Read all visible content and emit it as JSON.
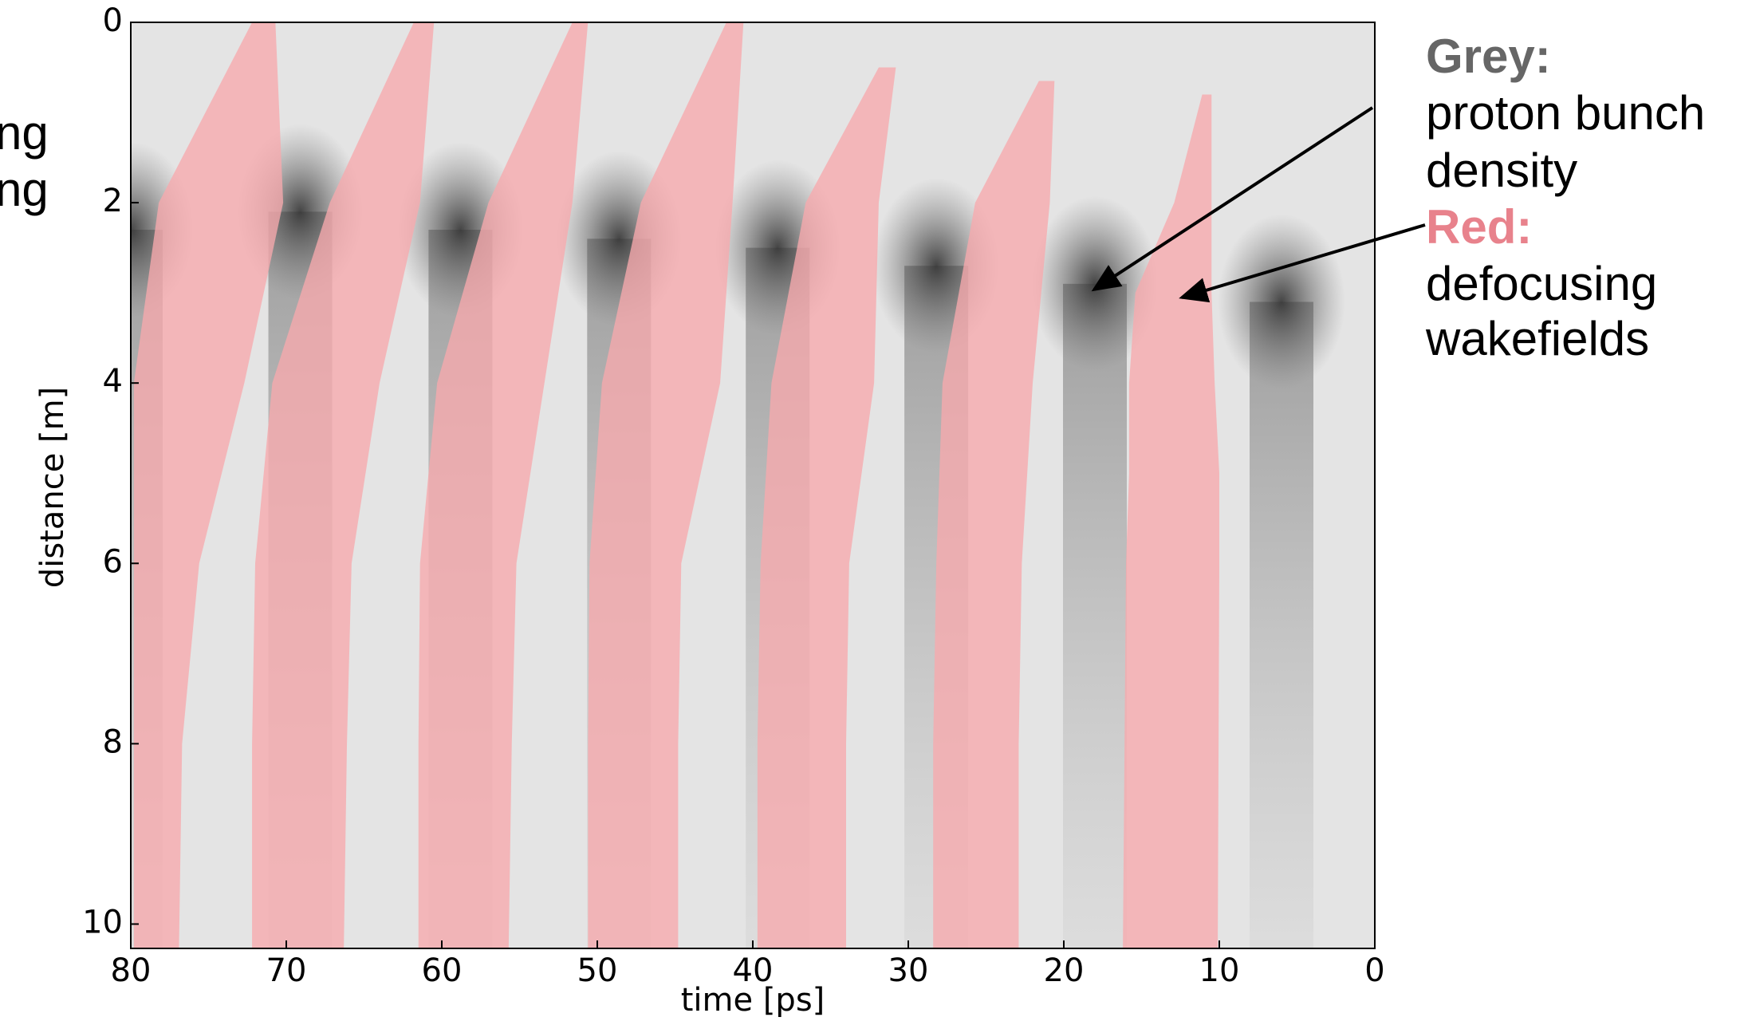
{
  "chart_data": {
    "type": "bands",
    "xlabel": "time [ps]",
    "ylabel": "distance [m]",
    "xlim": [
      80,
      0
    ],
    "xticks": [
      80,
      70,
      60,
      50,
      40,
      30,
      20,
      10,
      0
    ],
    "ylim": [
      0,
      10.27
    ],
    "yticks": [
      0,
      2,
      4,
      6,
      8,
      10
    ],
    "y_inverted": true,
    "band_color": "#f7a9ad",
    "bands": [
      {
        "d": [
          0,
          2,
          4,
          6,
          8,
          10.27
        ],
        "left": [
          72.2,
          78.2,
          79.8,
          79.8,
          79.8,
          79.8
        ],
        "right": [
          70.7,
          70.2,
          72.7,
          75.6,
          76.7,
          76.9
        ]
      },
      {
        "d": [
          0,
          2,
          4,
          6,
          8,
          10.27
        ],
        "left": [
          61.8,
          67.2,
          70.9,
          72.0,
          72.2,
          72.2
        ],
        "right": [
          60.5,
          61.4,
          64.0,
          65.8,
          66.1,
          66.3
        ]
      },
      {
        "d": [
          0,
          2,
          4,
          6,
          8,
          10.27
        ],
        "left": [
          51.6,
          57.0,
          60.3,
          61.4,
          61.5,
          61.5
        ],
        "right": [
          50.6,
          51.6,
          53.4,
          55.2,
          55.5,
          55.7
        ]
      },
      {
        "d": [
          0,
          2,
          4,
          6,
          8,
          10.27
        ],
        "left": [
          41.7,
          47.2,
          49.7,
          50.5,
          50.6,
          50.6
        ],
        "right": [
          40.6,
          41.3,
          42.1,
          44.6,
          44.8,
          44.8
        ]
      },
      {
        "d": [
          0.5,
          2,
          4,
          6,
          8,
          10.27
        ],
        "left": [
          31.9,
          36.6,
          38.8,
          39.5,
          39.7,
          39.7
        ],
        "right": [
          30.8,
          31.9,
          32.2,
          33.8,
          34.0,
          34.0
        ]
      },
      {
        "d": [
          0.65,
          2,
          4,
          6,
          8,
          10.27
        ],
        "left": [
          21.6,
          25.7,
          27.8,
          28.2,
          28.4,
          28.4
        ],
        "right": [
          20.6,
          20.9,
          22.0,
          22.7,
          22.9,
          22.9
        ]
      },
      {
        "d": [
          0.8,
          2,
          3,
          4,
          5,
          6,
          10.27
        ],
        "left": [
          11.1,
          12.9,
          15.4,
          15.8,
          15.8,
          16.0,
          16.2
        ],
        "right": [
          10.5,
          10.5,
          10.5,
          10.3,
          10.0,
          10.0,
          10.1
        ]
      }
    ],
    "bunch_heads": {
      "t": [
        80,
        69.1,
        58.8,
        48.6,
        38.4,
        28.2,
        18.0,
        6.0
      ],
      "d": [
        2.3,
        2.1,
        2.3,
        2.4,
        2.5,
        2.7,
        2.9,
        3.1
      ]
    },
    "annotations": {
      "grey_title": "Grey:",
      "grey_text": [
        "proton bunch",
        "density"
      ],
      "red_title": "Red:",
      "red_text": [
        "defocusing",
        "wakefields"
      ]
    },
    "cropped_text": [
      "ng",
      "ng"
    ]
  }
}
